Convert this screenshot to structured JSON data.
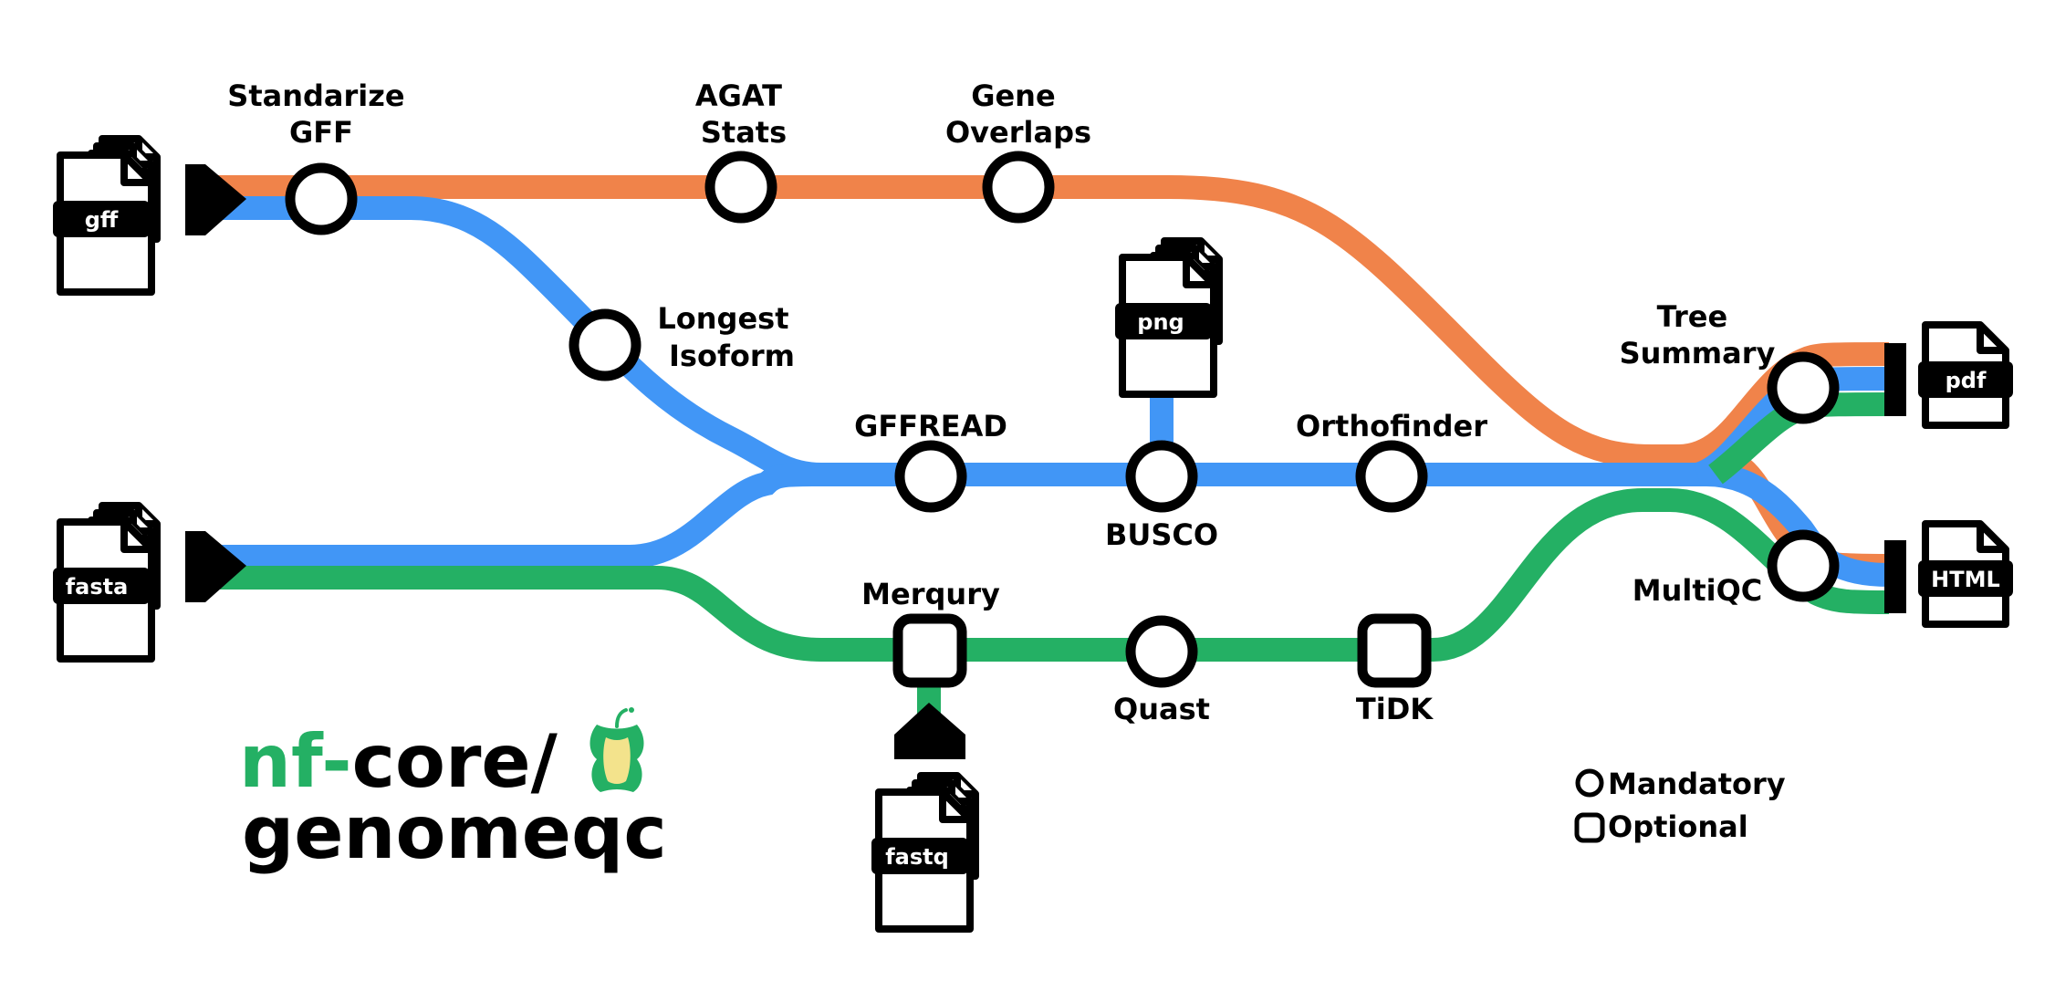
{
  "colors": {
    "orange": "#F0834A",
    "blue": "#4196F6",
    "green": "#24B064",
    "node_fill": "#FFFFFF",
    "stroke": "#000000",
    "logo_green": "#24B064"
  },
  "inputs": {
    "gff": "gff",
    "fasta": "fasta",
    "fastq": "fastq",
    "png": "png"
  },
  "outputs": {
    "pdf": "pdf",
    "html": "HTML"
  },
  "steps": {
    "standarize_gff": [
      "Standarize",
      "GFF"
    ],
    "agat_stats": [
      "AGAT",
      "Stats"
    ],
    "gene_overlaps": [
      "Gene",
      "Overlaps"
    ],
    "longest_isoform": [
      "Longest",
      "Isoform"
    ],
    "gffread": "GFFREAD",
    "busco": "BUSCO",
    "orthofinder": "Orthofinder",
    "tree_summary": [
      "Tree",
      "Summary"
    ],
    "multiqc": "MultiQC",
    "merqury": "Merqury",
    "quast": "Quast",
    "tidk": "TiDK"
  },
  "logo": {
    "prefix": "nf-",
    "core": "core/",
    "name": "genomeqc",
    "icon": "apple-core-icon"
  },
  "legend": {
    "mandatory": "Mandatory",
    "optional": "Optional"
  }
}
